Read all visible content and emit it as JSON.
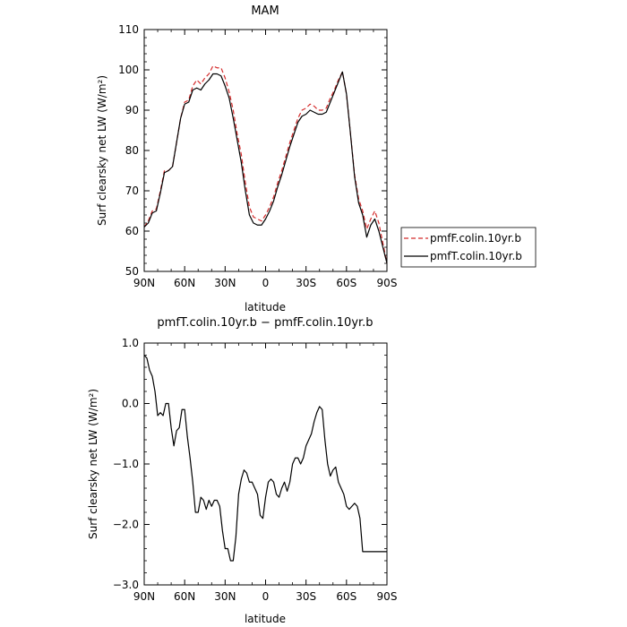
{
  "chart_data": [
    {
      "type": "line",
      "title": "MAM",
      "xlabel": "latitude",
      "ylabel": "Surf clearsky net LW (W/m²)",
      "ylim": [
        50,
        110
      ],
      "xlim": [
        90,
        -90
      ],
      "x_ticks": [
        90,
        60,
        30,
        0,
        -30,
        -60,
        -90
      ],
      "x_tick_labels": [
        "90N",
        "60N",
        "30N",
        "0",
        "30S",
        "60S",
        "90S"
      ],
      "y_ticks": [
        50,
        60,
        70,
        80,
        90,
        100,
        110
      ],
      "y_tick_labels": [
        "50",
        "60",
        "70",
        "80",
        "90",
        "100",
        "110"
      ],
      "legend_position": "outside-right",
      "x": [
        90,
        87,
        84,
        81,
        78,
        75,
        72,
        69,
        66,
        63,
        60,
        57,
        54,
        51,
        48,
        45,
        42,
        39,
        36,
        33,
        30,
        27,
        24,
        21,
        18,
        15,
        12,
        9,
        6,
        3,
        0,
        -3,
        -6,
        -9,
        -12,
        -15,
        -18,
        -21,
        -24,
        -27,
        -30,
        -33,
        -36,
        -39,
        -42,
        -45,
        -48,
        -51,
        -54,
        -57,
        -60,
        -63,
        -66,
        -69,
        -72,
        -75,
        -78,
        -81,
        -84,
        -87,
        -90
      ],
      "series": [
        {
          "name": "pmfF.colin.10yr.b",
          "color": "#d42a2a",
          "dash": "dashed",
          "values": [
            61,
            62.5,
            65,
            65.5,
            70,
            75,
            75,
            76,
            82,
            88,
            92,
            92.5,
            96,
            97.5,
            96.5,
            98,
            99,
            101,
            100.5,
            100.5,
            98,
            94.5,
            90,
            84,
            79,
            72,
            66,
            63.5,
            63,
            62.5,
            64,
            66,
            68.5,
            72,
            75,
            78.5,
            82,
            85,
            88,
            90,
            90.5,
            91.5,
            91,
            90,
            90,
            90.5,
            93,
            95,
            97.5,
            99.5,
            94,
            84,
            74,
            68,
            65,
            60.5,
            63,
            65,
            62,
            57,
            52
          ]
        },
        {
          "name": "pmfT.colin.10yr.b",
          "color": "#000000",
          "dash": "solid",
          "values": [
            61,
            62,
            64.5,
            65,
            69.5,
            74.5,
            75,
            76,
            82,
            88,
            91.5,
            92,
            95,
            95.5,
            95,
            96.5,
            97.5,
            99,
            99,
            98.5,
            96,
            93,
            88,
            82.5,
            77,
            70,
            64,
            62,
            61.5,
            61.5,
            63,
            65,
            67.5,
            71,
            74,
            77.5,
            81,
            84,
            87,
            88.5,
            89,
            90,
            89.5,
            89,
            89,
            89.5,
            92,
            94.5,
            97,
            99.5,
            94,
            84,
            73.5,
            67,
            64,
            58.5,
            61.5,
            63,
            60,
            56,
            52
          ]
        }
      ]
    },
    {
      "type": "line",
      "title": "pmfT.colin.10yr.b − pmfF.colin.10yr.b",
      "xlabel": "latitude",
      "ylabel": "Surf clearsky net LW (W/m²)",
      "ylim": [
        -3.0,
        1.0
      ],
      "xlim": [
        90,
        -90
      ],
      "x_ticks": [
        90,
        60,
        30,
        0,
        -30,
        -60,
        -90
      ],
      "x_tick_labels": [
        "90N",
        "60N",
        "30N",
        "0",
        "30S",
        "60S",
        "90S"
      ],
      "y_ticks": [
        -3,
        -2,
        -1,
        0,
        1
      ],
      "y_tick_labels": [
        "−3.0",
        "−2.0",
        "−1.0",
        "0.0",
        "1.0"
      ],
      "x": [
        90,
        88,
        86,
        84,
        82,
        80,
        78,
        76,
        74,
        72,
        70,
        68,
        66,
        64,
        62,
        60,
        58,
        56,
        54,
        52,
        50,
        48,
        46,
        44,
        42,
        40,
        38,
        36,
        34,
        32,
        30,
        28,
        26,
        24,
        22,
        20,
        18,
        16,
        14,
        12,
        10,
        8,
        6,
        4,
        2,
        0,
        -2,
        -4,
        -6,
        -8,
        -10,
        -12,
        -14,
        -16,
        -18,
        -20,
        -22,
        -24,
        -26,
        -28,
        -30,
        -32,
        -34,
        -36,
        -38,
        -40,
        -42,
        -44,
        -46,
        -48,
        -50,
        -52,
        -54,
        -56,
        -58,
        -60,
        -62,
        -64,
        -66,
        -68,
        -70,
        -72,
        -74,
        -76,
        -78,
        -80,
        -82,
        -84,
        -86,
        -88,
        -90
      ],
      "series": [
        {
          "name": "",
          "color": "#000000",
          "dash": "solid",
          "values": [
            0.8,
            0.75,
            0.55,
            0.45,
            0.2,
            -0.2,
            -0.15,
            -0.2,
            0,
            0,
            -0.4,
            -0.7,
            -0.45,
            -0.4,
            -0.1,
            -0.1,
            -0.55,
            -0.9,
            -1.3,
            -1.8,
            -1.8,
            -1.55,
            -1.6,
            -1.75,
            -1.6,
            -1.7,
            -1.6,
            -1.6,
            -1.7,
            -2.1,
            -2.4,
            -2.4,
            -2.6,
            -2.6,
            -2.2,
            -1.5,
            -1.25,
            -1.1,
            -1.15,
            -1.3,
            -1.3,
            -1.4,
            -1.5,
            -1.85,
            -1.9,
            -1.55,
            -1.3,
            -1.25,
            -1.3,
            -1.5,
            -1.55,
            -1.4,
            -1.3,
            -1.45,
            -1.3,
            -1.0,
            -0.9,
            -0.9,
            -1.0,
            -0.9,
            -0.7,
            -0.6,
            -0.5,
            -0.3,
            -0.15,
            -0.05,
            -0.1,
            -0.6,
            -1.0,
            -1.2,
            -1.1,
            -1.05,
            -1.3,
            -1.4,
            -1.5,
            -1.7,
            -1.75,
            -1.7,
            -1.65,
            -1.7,
            -1.9,
            -2.45,
            -2.45,
            -2.45,
            -2.45,
            -2.45,
            -2.45,
            -2.45,
            -2.45,
            -2.45,
            -2.45
          ]
        }
      ]
    }
  ]
}
